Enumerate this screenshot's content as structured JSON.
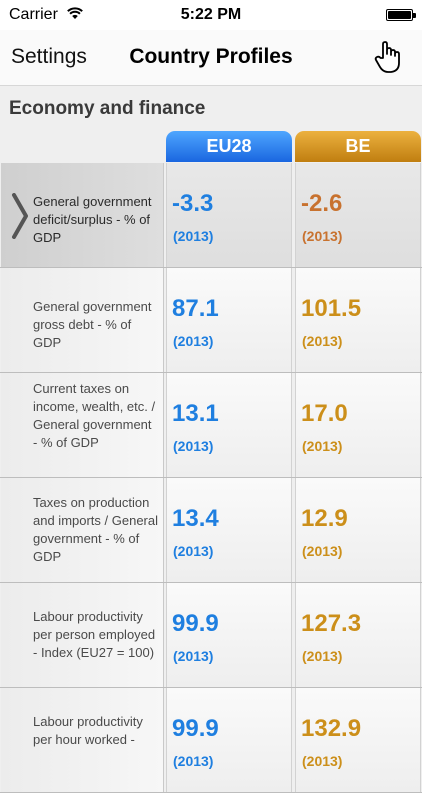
{
  "status_bar": {
    "carrier": "Carrier",
    "time": "5:22 PM",
    "icons": [
      "wifi-icon",
      "battery-icon"
    ]
  },
  "navbar": {
    "back_label": "Settings",
    "title": "Country Profiles",
    "right_icon": "hand-pointer-icon"
  },
  "section": {
    "title": "Economy and finance"
  },
  "columns": {
    "eu": "EU28",
    "be": "BE"
  },
  "colors": {
    "eu_accent": "#1f7fe0",
    "be_accent": "#cc8f1a"
  },
  "rows": [
    {
      "label": "General government deficit/surplus - % of GDP",
      "eu_value": "-3.3",
      "eu_year": "(2013)",
      "be_value": "-2.6",
      "be_year": "(2013)"
    },
    {
      "label": "General government gross debt - % of GDP",
      "eu_value": "87.1",
      "eu_year": "(2013)",
      "be_value": "101.5",
      "be_year": "(2013)"
    },
    {
      "label": "Current taxes on income, wealth, etc. / General government - % of GDP",
      "eu_value": "13.1",
      "eu_year": "(2013)",
      "be_value": "17.0",
      "be_year": "(2013)"
    },
    {
      "label": "Taxes on production and imports / General government - % of GDP",
      "eu_value": "13.4",
      "eu_year": "(2013)",
      "be_value": "12.9",
      "be_year": "(2013)"
    },
    {
      "label": "Labour productivity per person employed - Index (EU27 = 100)",
      "eu_value": "99.9",
      "eu_year": "(2013)",
      "be_value": "127.3",
      "be_year": "(2013)"
    },
    {
      "label": "Labour productivity per hour worked -",
      "eu_value": "99.9",
      "eu_year": "(2013)",
      "be_value": "132.9",
      "be_year": "(2013)"
    }
  ]
}
